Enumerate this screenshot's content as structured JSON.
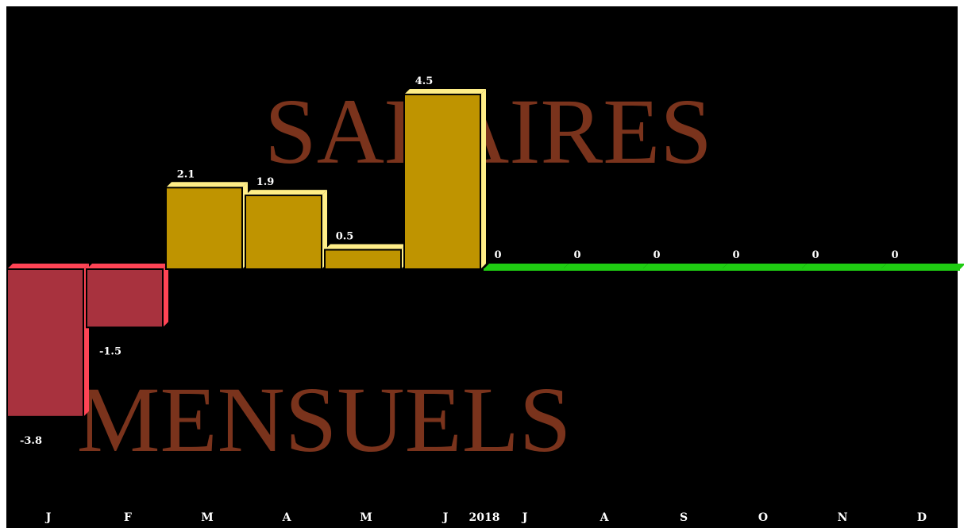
{
  "chart_data": {
    "type": "bar",
    "title_words": [
      "SALAIRES",
      "MENSUELS"
    ],
    "year": "2018",
    "categories": [
      "J",
      "F",
      "M",
      "A",
      "M",
      "J",
      "J",
      "A",
      "S",
      "O",
      "N",
      "D"
    ],
    "values": [
      -3.8,
      -1.5,
      2.1,
      1.9,
      0.5,
      4.5,
      0,
      0,
      0,
      0,
      0,
      0
    ],
    "value_labels": [
      "-3.8",
      "-1.5",
      "2.1",
      "1.9",
      "0.5",
      "4.5",
      "0",
      "0",
      "0",
      "0",
      "0",
      "0"
    ],
    "colors": {
      "background": "#000000",
      "positive_front": "#bf9400",
      "positive_edge": "#ffee88",
      "negative_front": "#a8323e",
      "negative_edge": "#ff4455",
      "zero_line": "#1fcc12",
      "title": "#7a331c",
      "labels": "#ffffff"
    },
    "grid": false,
    "legend": "none"
  }
}
